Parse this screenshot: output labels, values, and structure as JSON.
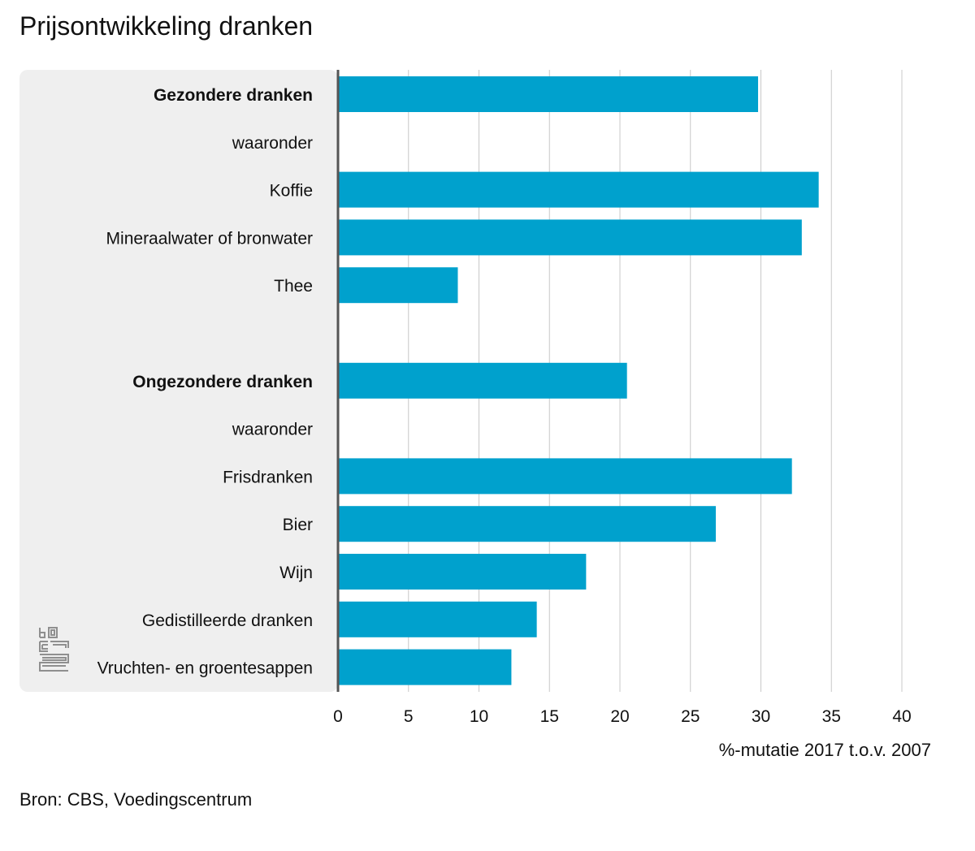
{
  "title": "Prijsontwikkeling dranken",
  "source": "Bron: CBS, Voedingscentrum",
  "logo_icon": "cbs-logo-icon",
  "chart_data": {
    "type": "bar",
    "orientation": "horizontal",
    "title": "Prijsontwikkeling dranken",
    "xlabel": "%-mutatie 2017 t.o.v. 2007",
    "ylabel": "",
    "xlim": [
      0,
      40
    ],
    "xticks": [
      0,
      5,
      10,
      15,
      20,
      25,
      30,
      35,
      40
    ],
    "grid": true,
    "bar_color": "#00a1cd",
    "categories": [
      {
        "label": "Gezondere dranken",
        "value": 29.8,
        "bold": true
      },
      {
        "label": "waaronder",
        "value": null,
        "bold": false
      },
      {
        "label": "Koffie",
        "value": 34.1,
        "bold": false
      },
      {
        "label": "Mineraalwater of bronwater",
        "value": 32.9,
        "bold": false
      },
      {
        "label": "Thee",
        "value": 8.5,
        "bold": false
      },
      {
        "label": "",
        "value": null,
        "bold": false
      },
      {
        "label": "Ongezondere dranken",
        "value": 20.5,
        "bold": true
      },
      {
        "label": "waaronder",
        "value": null,
        "bold": false
      },
      {
        "label": "Frisdranken",
        "value": 32.2,
        "bold": false
      },
      {
        "label": "Bier",
        "value": 26.8,
        "bold": false
      },
      {
        "label": "Wijn",
        "value": 17.6,
        "bold": false
      },
      {
        "label": "Gedistilleerde dranken",
        "value": 14.1,
        "bold": false
      },
      {
        "label": "Vruchten- en groentesappen",
        "value": 12.3,
        "bold": false
      }
    ]
  }
}
